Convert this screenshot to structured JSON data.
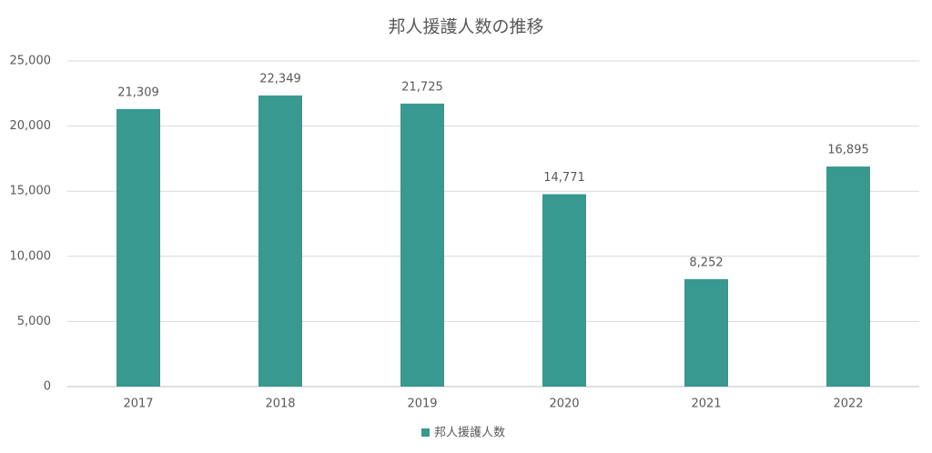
{
  "chart_data": {
    "type": "bar",
    "title": "邦人援護人数の推移",
    "categories": [
      "2017",
      "2018",
      "2019",
      "2020",
      "2021",
      "2022"
    ],
    "series": [
      {
        "name": "邦人援護人数",
        "color": "#37998f",
        "values": [
          21309,
          22349,
          21725,
          14771,
          8252,
          16895
        ],
        "value_labels": [
          "21,309",
          "22,349",
          "21,725",
          "14,771",
          "8,252",
          "16,895"
        ]
      }
    ],
    "ylim": [
      0,
      25000
    ],
    "yticks": [
      0,
      {
        "value": 5000,
        "label": "5,000"
      },
      {
        "value": 10000,
        "label": "10,000"
      },
      {
        "value": 15000,
        "label": "15,000"
      },
      {
        "value": 20000,
        "label": "20,000"
      },
      {
        "value": 25000,
        "label": "25,000"
      }
    ],
    "grid": true,
    "legend": "bottom"
  }
}
